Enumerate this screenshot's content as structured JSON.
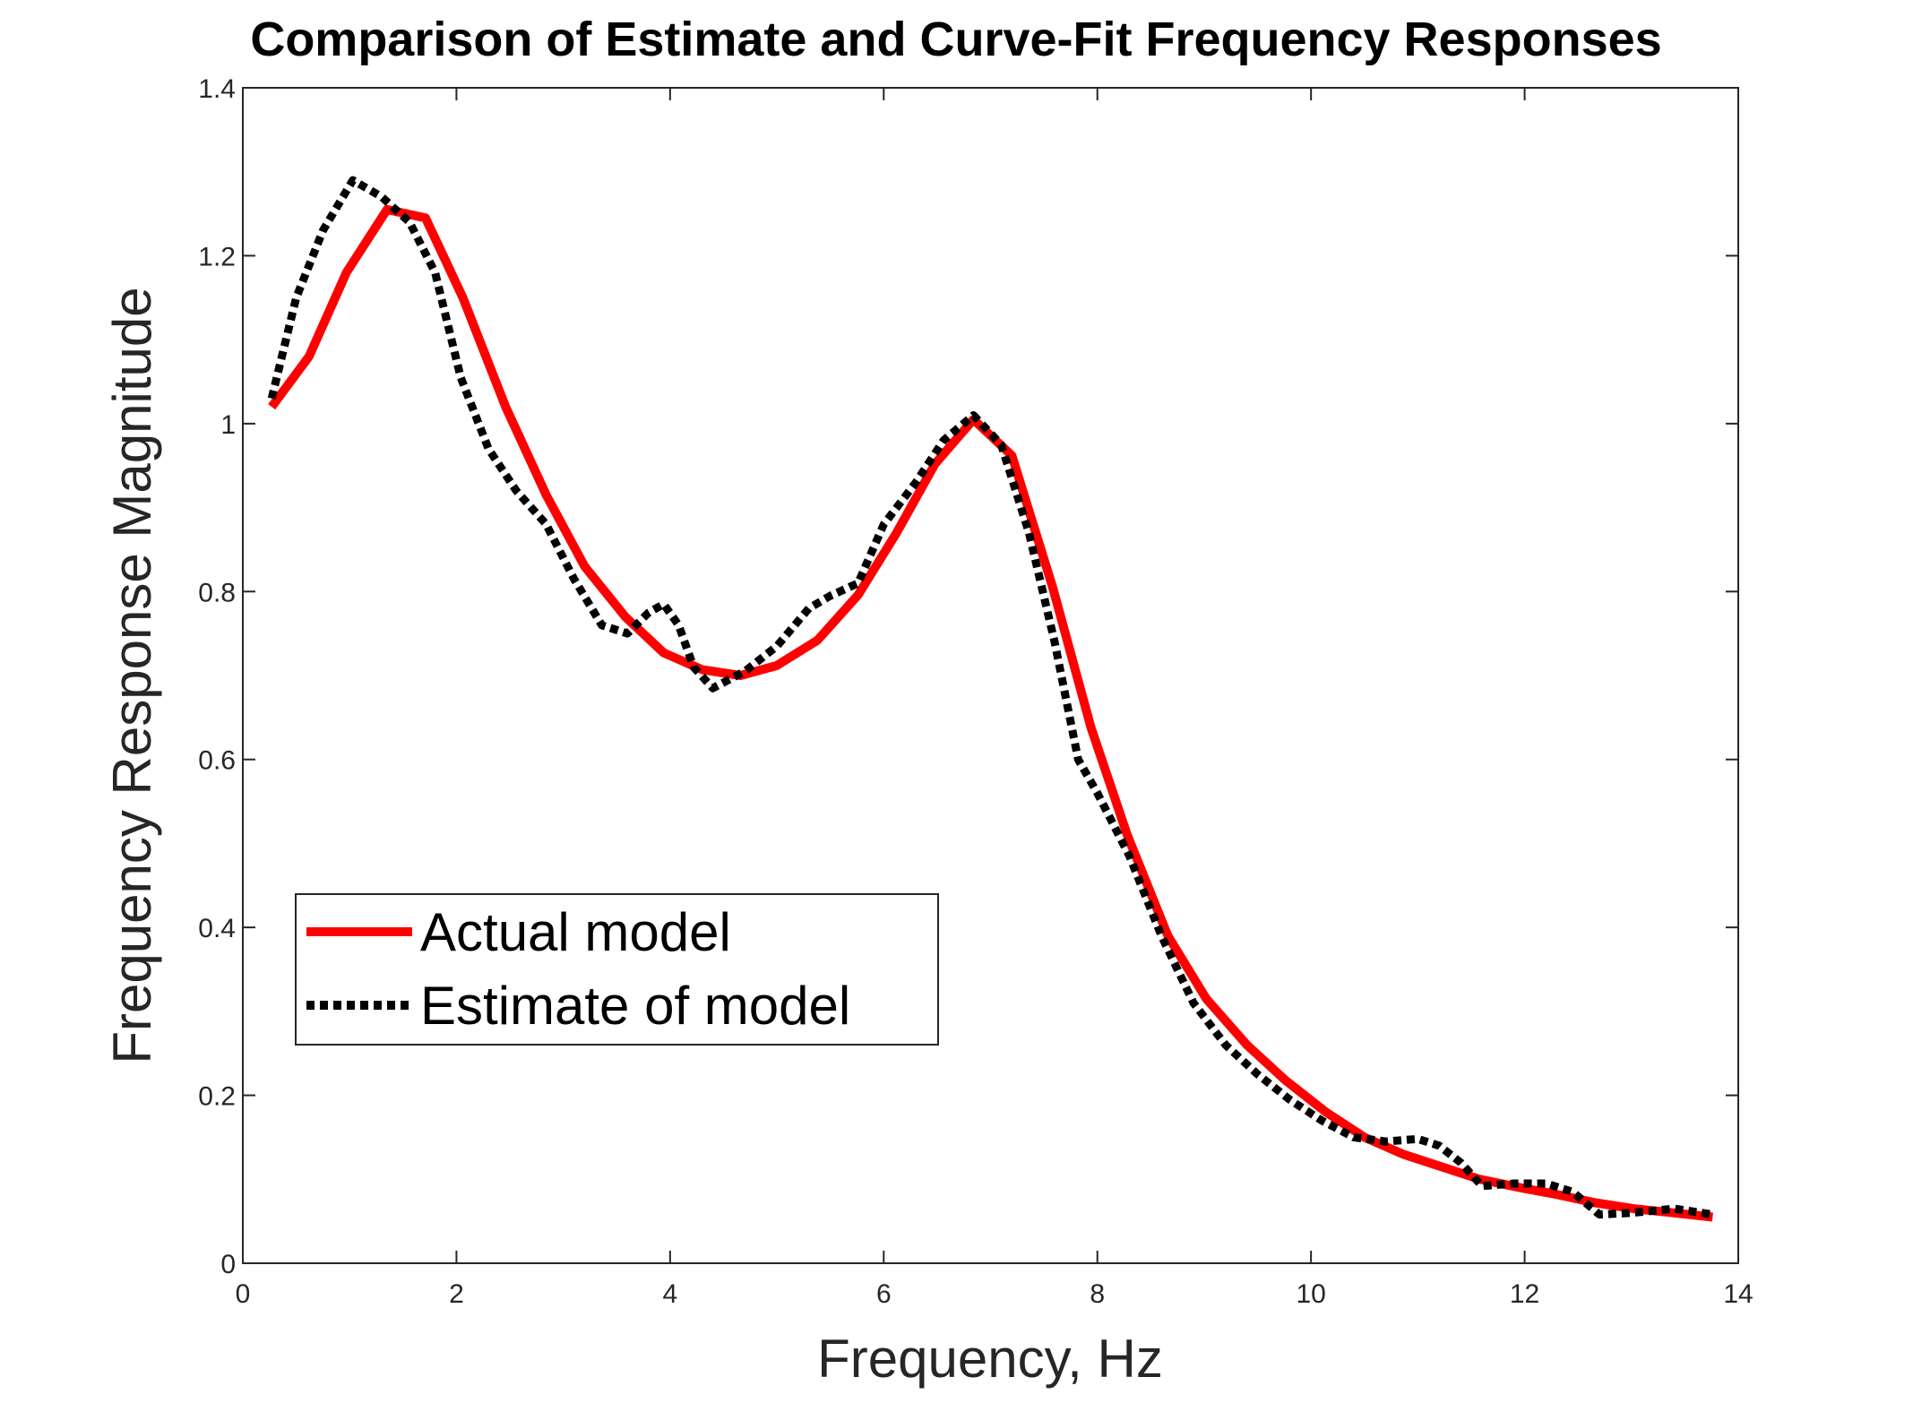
{
  "chart_data": {
    "type": "line",
    "title": "Comparison of Estimate and Curve-Fit Frequency Responses",
    "xlabel": "Frequency, Hz",
    "ylabel": "Frequency Response Magnitude",
    "xlim": [
      0,
      14
    ],
    "ylim": [
      0,
      1.4
    ],
    "xticks": [
      0,
      2,
      4,
      6,
      8,
      10,
      12,
      14
    ],
    "xtick_labels": [
      "0",
      "2",
      "4",
      "6",
      "8",
      "10",
      "12",
      "14"
    ],
    "yticks": [
      0,
      0.2,
      0.4,
      0.6,
      0.8,
      1.0,
      1.2,
      1.4
    ],
    "ytick_labels": [
      "0",
      "0.2",
      "0.4",
      "0.6",
      "0.8",
      "1",
      "1.2",
      "1.4"
    ],
    "grid": false,
    "legend_position": "lower-left",
    "series": [
      {
        "name": "Actual model",
        "style": "solid",
        "color": "#ff0000",
        "x": [
          0.27,
          0.62,
          0.97,
          1.35,
          1.71,
          2.06,
          2.46,
          2.84,
          3.2,
          3.58,
          3.94,
          4.3,
          4.66,
          5.0,
          5.38,
          5.76,
          6.12,
          6.48,
          6.84,
          7.2,
          7.58,
          7.94,
          8.28,
          8.66,
          9.02,
          9.4,
          9.76,
          10.14,
          10.5,
          10.86,
          11.22,
          11.58,
          11.96,
          12.3,
          12.66,
          13.02,
          13.4,
          13.76
        ],
        "y": [
          1.02,
          1.08,
          1.18,
          1.255,
          1.245,
          1.15,
          1.02,
          0.915,
          0.83,
          0.77,
          0.727,
          0.707,
          0.7,
          0.712,
          0.742,
          0.796,
          0.87,
          0.952,
          1.005,
          0.962,
          0.806,
          0.638,
          0.51,
          0.39,
          0.315,
          0.26,
          0.218,
          0.18,
          0.15,
          0.13,
          0.115,
          0.1,
          0.09,
          0.082,
          0.072,
          0.065,
          0.06,
          0.055
        ]
      },
      {
        "name": "Estimate of model",
        "style": "dotted",
        "color": "#000000",
        "x": [
          0.27,
          0.5,
          0.75,
          1.03,
          1.3,
          1.56,
          1.8,
          2.04,
          2.3,
          2.56,
          2.84,
          3.1,
          3.36,
          3.6,
          3.8,
          3.94,
          4.08,
          4.22,
          4.4,
          4.7,
          5.0,
          5.3,
          5.5,
          5.76,
          6.0,
          6.3,
          6.56,
          6.84,
          7.1,
          7.36,
          7.6,
          7.82,
          8.0,
          8.3,
          8.6,
          8.9,
          9.2,
          9.5,
          9.8,
          10.1,
          10.4,
          10.7,
          11.0,
          11.2,
          11.4,
          11.6,
          11.9,
          12.2,
          12.45,
          12.7,
          13.0,
          13.4,
          13.76
        ],
        "y": [
          1.03,
          1.15,
          1.23,
          1.29,
          1.27,
          1.24,
          1.18,
          1.055,
          0.97,
          0.92,
          0.88,
          0.815,
          0.76,
          0.75,
          0.775,
          0.785,
          0.76,
          0.71,
          0.685,
          0.705,
          0.735,
          0.78,
          0.795,
          0.81,
          0.88,
          0.93,
          0.98,
          1.01,
          0.975,
          0.87,
          0.74,
          0.6,
          0.56,
          0.485,
          0.39,
          0.31,
          0.26,
          0.225,
          0.195,
          0.17,
          0.15,
          0.145,
          0.148,
          0.14,
          0.12,
          0.092,
          0.095,
          0.095,
          0.085,
          0.058,
          0.06,
          0.065,
          0.058
        ]
      }
    ]
  }
}
